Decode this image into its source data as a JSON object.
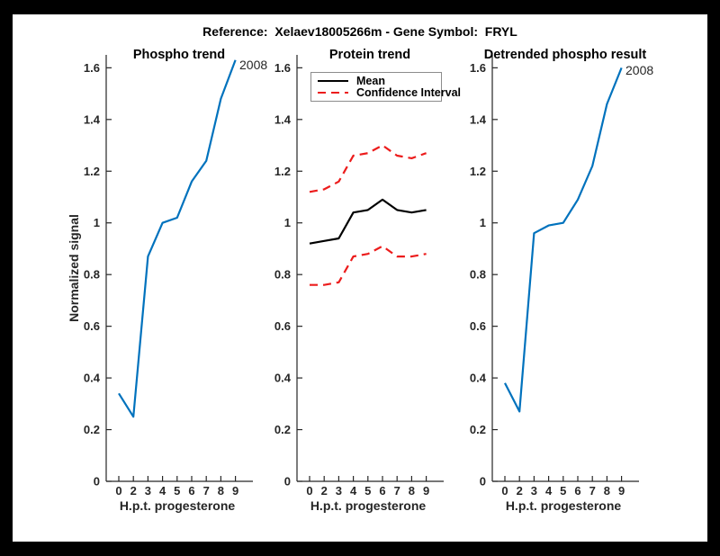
{
  "figure": {
    "title": "Reference:  Xelaev18005266m - Gene Symbol:  FRYL",
    "background": "#ffffff",
    "border_color": "#000000"
  },
  "axes": {
    "xlabel": "H.p.t. progesterone",
    "ylabel": "Normalized signal",
    "x_tick_labels": [
      "0",
      "2",
      "3",
      "4",
      "5",
      "6",
      "7",
      "8",
      "9"
    ],
    "y_tick_values": [
      0,
      0.2,
      0.4,
      0.6,
      0.8,
      1.0,
      1.2,
      1.4,
      1.6
    ],
    "y_tick_labels": [
      "0",
      "0.2",
      "0.4",
      "0.6",
      "0.8",
      "1",
      "1.2",
      "1.4",
      "1.6"
    ],
    "ylim": [
      0,
      1.65
    ],
    "axis_color": "#262626",
    "grid": "off"
  },
  "colors": {
    "line_blue": "#0072BD",
    "line_red": "#ec1c1c",
    "line_black": "#000000"
  },
  "annotations": {
    "phospho_end_label": "2008",
    "detrended_end_label": "2008"
  },
  "legend": {
    "position": "top-left-of-protein-trend",
    "items": [
      {
        "label": "Mean",
        "style": "solid",
        "color": "#000000"
      },
      {
        "label": "Confidence Interval",
        "style": "dashed",
        "color": "#ec1c1c"
      }
    ]
  },
  "chart_data": [
    {
      "type": "line",
      "title": "Phospho trend",
      "xlabel": "H.p.t. progesterone",
      "ylabel": "Normalized signal",
      "x_tick_labels": [
        "0",
        "2",
        "3",
        "4",
        "5",
        "6",
        "7",
        "8",
        "9"
      ],
      "ylim": [
        0,
        1.65
      ],
      "annotation": "2008",
      "series": [
        {
          "name": "Phospho signal",
          "color": "#0072BD",
          "style": "solid",
          "values": [
            0.34,
            0.25,
            0.87,
            1.0,
            1.02,
            1.16,
            1.24,
            1.48,
            1.63
          ]
        }
      ]
    },
    {
      "type": "line",
      "title": "Protein trend",
      "xlabel": "H.p.t. progesterone",
      "ylabel": "",
      "x_tick_labels": [
        "0",
        "2",
        "3",
        "4",
        "5",
        "6",
        "7",
        "8",
        "9"
      ],
      "ylim": [
        0,
        1.65
      ],
      "legend_entries": [
        "Mean",
        "Confidence Interval"
      ],
      "series": [
        {
          "name": "Mean",
          "color": "#000000",
          "style": "solid",
          "values": [
            0.92,
            0.93,
            0.94,
            1.04,
            1.05,
            1.09,
            1.05,
            1.04,
            1.05
          ]
        },
        {
          "name": "Upper confidence interval",
          "color": "#ec1c1c",
          "style": "dashed",
          "values": [
            1.12,
            1.13,
            1.16,
            1.26,
            1.27,
            1.3,
            1.26,
            1.25,
            1.27
          ]
        },
        {
          "name": "Lower confidence interval",
          "color": "#ec1c1c",
          "style": "dashed",
          "values": [
            0.76,
            0.76,
            0.77,
            0.87,
            0.88,
            0.91,
            0.87,
            0.87,
            0.88
          ]
        }
      ]
    },
    {
      "type": "line",
      "title": "Detrended phospho result",
      "xlabel": "H.p.t. progesterone",
      "ylabel": "",
      "x_tick_labels": [
        "0",
        "2",
        "3",
        "4",
        "5",
        "6",
        "7",
        "8",
        "9"
      ],
      "ylim": [
        0,
        1.65
      ],
      "annotation": "2008",
      "series": [
        {
          "name": "Detrended phospho signal",
          "color": "#0072BD",
          "style": "solid",
          "values": [
            0.38,
            0.27,
            0.96,
            0.99,
            1.0,
            1.09,
            1.22,
            1.46,
            1.6
          ]
        }
      ]
    }
  ]
}
